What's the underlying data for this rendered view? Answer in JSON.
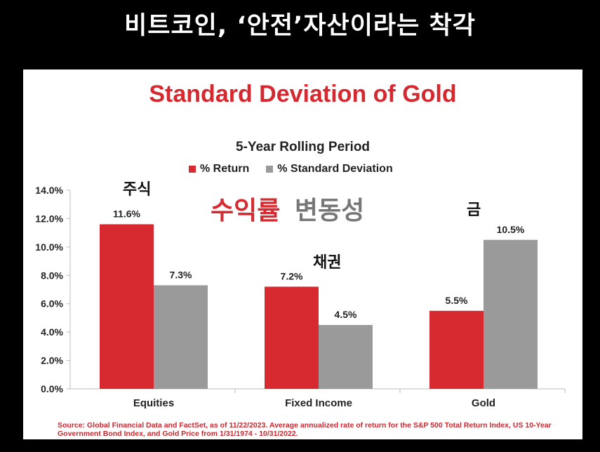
{
  "header": {
    "title": "비트코인, ‘안전’자산이라는 착각"
  },
  "annotations": {
    "equities": "주식",
    "fixed_income": "채권",
    "gold": "금",
    "overlay_red": "수익률",
    "overlay_gray": "변동성"
  },
  "colors": {
    "return": "#d62a30",
    "stdev": "#9a9a9a",
    "title": "#d6282f"
  },
  "chart_data": {
    "type": "bar",
    "title": "Standard Deviation of Gold",
    "subtitle": "5-Year Rolling Period",
    "categories": [
      "Equities",
      "Fixed Income",
      "Gold"
    ],
    "series": [
      {
        "name": "% Return",
        "values": [
          11.6,
          7.2,
          5.5
        ],
        "labels": [
          "11.6%",
          "7.2%",
          "5.5%"
        ]
      },
      {
        "name": "% Standard Deviation",
        "values": [
          7.3,
          4.5,
          10.5
        ],
        "labels": [
          "7.3%",
          "4.5%",
          "10.5%"
        ]
      }
    ],
    "yticks": [
      "0.0%",
      "2.0%",
      "4.0%",
      "6.0%",
      "8.0%",
      "10.0%",
      "12.0%",
      "14.0%"
    ],
    "ylim": [
      0,
      14
    ],
    "legend": "top",
    "grid": false,
    "source": "Source: Global Financial Data and FactSet, as of 11/22/2023. Average annualized rate of return for the S&P 500 Total Return Index, US 10-Year Government Bond Index, and Gold Price from 1/31/1974 - 10/31/2022."
  }
}
